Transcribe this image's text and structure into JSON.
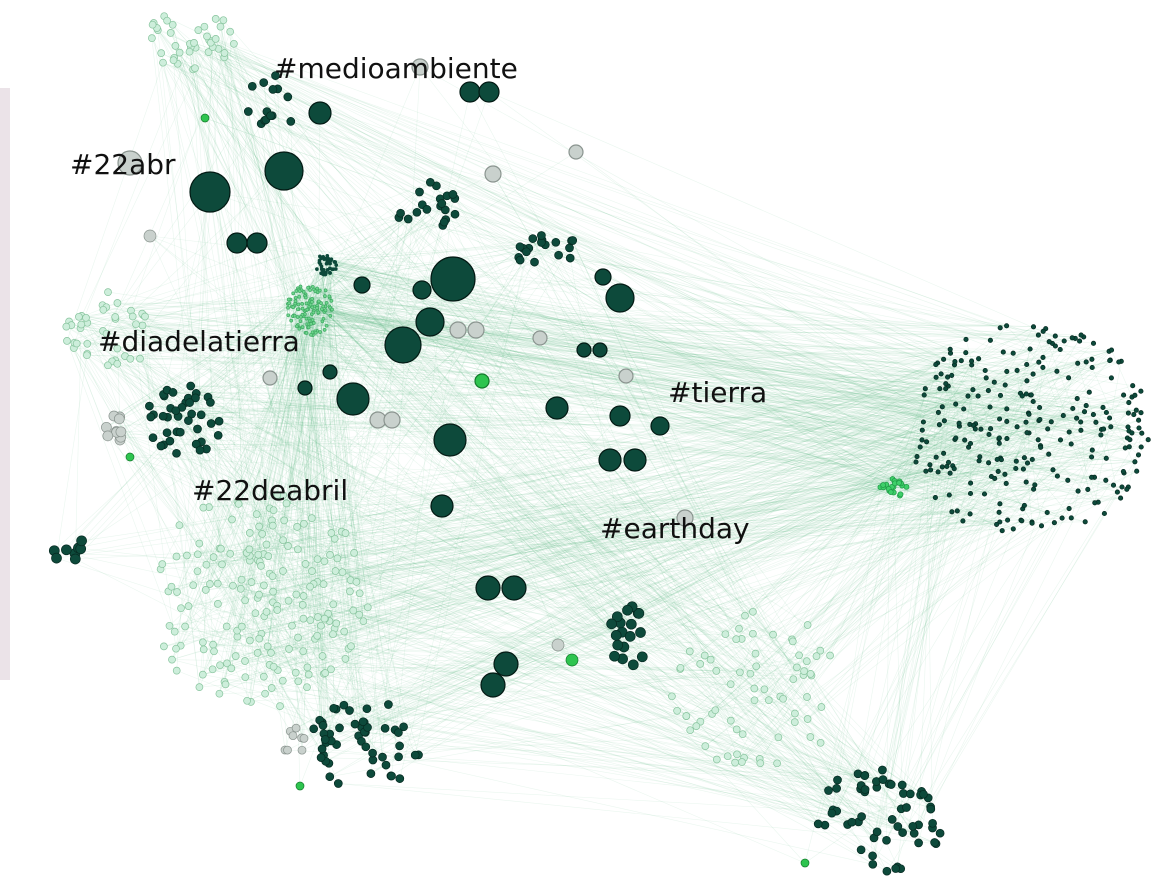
{
  "labels": [
    "#medioambiente",
    "#22abr",
    "#diadelatierra",
    "#tierra",
    "#22deabril",
    "#earthday"
  ]
}
